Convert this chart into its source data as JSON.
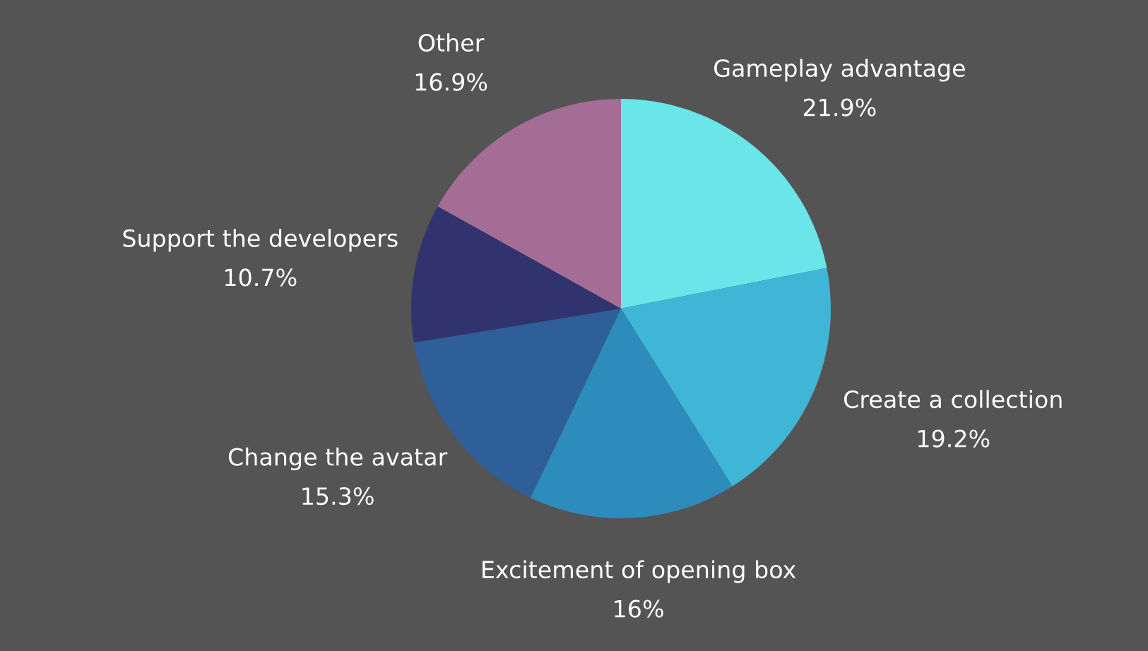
{
  "chart_data": {
    "type": "pie",
    "categories": [
      "Gameplay advantage",
      "Create a collection",
      "Excitement of opening box",
      "Change the avatar",
      "Support the developers",
      "Other"
    ],
    "values": [
      21.9,
      19.2,
      16,
      15.3,
      10.7,
      16.9
    ],
    "value_labels": [
      "21.9%",
      "19.2%",
      "16%",
      "15.3%",
      "10.7%",
      "16.9%"
    ],
    "colors": [
      "#6ae5e8",
      "#40b6d6",
      "#2d8cbb",
      "#2e5f99",
      "#30336d",
      "#a36d96"
    ],
    "legend": false
  }
}
